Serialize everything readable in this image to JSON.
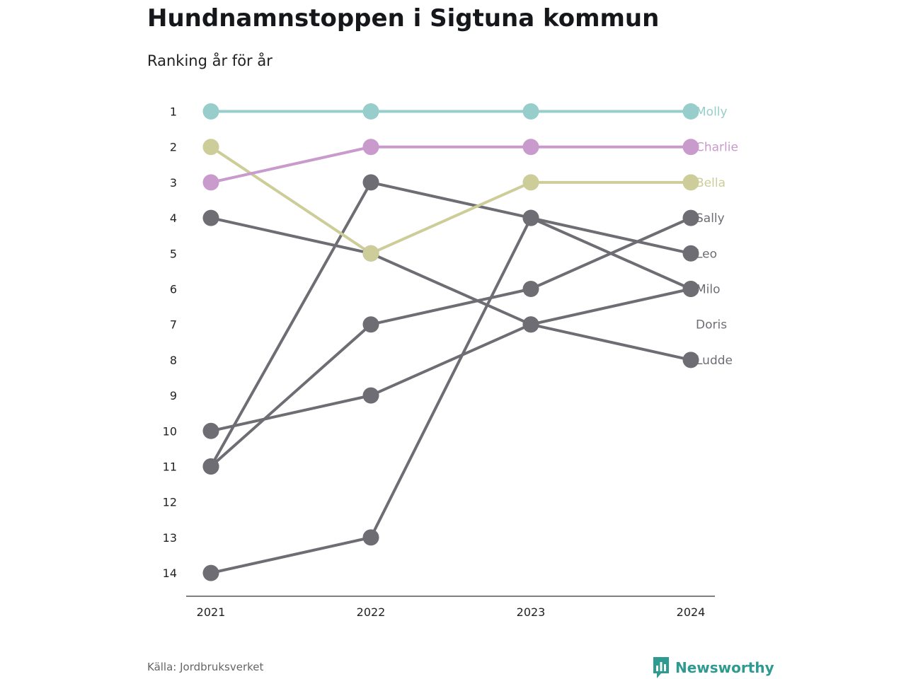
{
  "title": "Hundnamnstoppen i Sigtuna kommun",
  "subtitle": "Ranking år för år",
  "source": "Källa: Jordbruksverket",
  "brand": {
    "name": "Newsworthy",
    "icon": "newsworthy-logo-icon",
    "color": "#2f9a8f"
  },
  "chart_data": {
    "type": "line",
    "variant": "bump",
    "x": [
      "2021",
      "2022",
      "2023",
      "2024"
    ],
    "y_ticks": [
      "1",
      "2",
      "3",
      "4",
      "5",
      "6",
      "7",
      "8",
      "9",
      "10",
      "11",
      "12",
      "13",
      "14"
    ],
    "y_range": [
      1,
      14
    ],
    "y_reversed": true,
    "grid": false,
    "legend": "direct labels at right end",
    "series": [
      {
        "name": "Ludde",
        "color": "#6e6d74",
        "values": [
          4,
          5,
          7,
          8
        ]
      },
      {
        "name": "Doris",
        "color": "#6e6d74",
        "values": [
          11,
          3,
          4,
          6
        ]
      },
      {
        "name": "Milo",
        "color": "#6e6d74",
        "values": [
          10,
          9,
          7,
          6
        ]
      },
      {
        "name": "Leo",
        "color": "#6e6d74",
        "values": [
          14,
          13,
          4,
          5
        ]
      },
      {
        "name": "Sally",
        "color": "#6e6d74",
        "values": [
          11,
          7,
          6,
          4
        ]
      },
      {
        "name": "Bella",
        "color": "#cdcd9a",
        "values": [
          2,
          5,
          3,
          3
        ]
      },
      {
        "name": "Charlie",
        "color": "#c99acc",
        "values": [
          3,
          2,
          2,
          2
        ]
      },
      {
        "name": "Molly",
        "color": "#97cdcb",
        "values": [
          1,
          1,
          1,
          1
        ]
      }
    ],
    "end_labels": [
      {
        "text": "Molly",
        "rank": 1,
        "color": "#97cdcb"
      },
      {
        "text": "Charlie",
        "rank": 2,
        "color": "#c99acc"
      },
      {
        "text": "Bella",
        "rank": 3,
        "color": "#cdcd9a"
      },
      {
        "text": "Sally",
        "rank": 4,
        "color": "#6e6d74"
      },
      {
        "text": "Leo",
        "rank": 5,
        "color": "#6e6d74"
      },
      {
        "text": "Milo",
        "rank": 6,
        "color": "#6e6d74"
      },
      {
        "text": "Doris",
        "rank": 7,
        "color": "#6e6d74"
      },
      {
        "text": "Ludde",
        "rank": 8,
        "color": "#6e6d74"
      }
    ]
  }
}
